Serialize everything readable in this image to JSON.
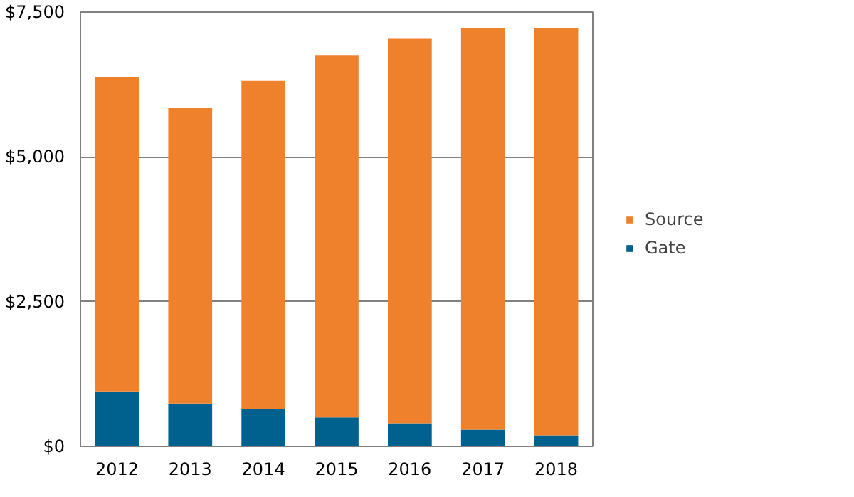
{
  "chart_data": {
    "type": "bar",
    "stacked": true,
    "categories": [
      "2012",
      "2013",
      "2014",
      "2015",
      "2016",
      "2017",
      "2018"
    ],
    "series": [
      {
        "name": "Gate",
        "color": "#00608e",
        "values": [
          950,
          740,
          650,
          500,
          400,
          290,
          190
        ]
      },
      {
        "name": "Source",
        "color": "#f0812c",
        "values": [
          5430,
          5110,
          5660,
          6260,
          6640,
          6930,
          7030
        ]
      }
    ],
    "ylim": [
      0,
      7500
    ],
    "yticks": [
      {
        "value": 0,
        "label": "$0"
      },
      {
        "value": 2500,
        "label": "$2,500"
      },
      {
        "value": 5000,
        "label": "$5,000"
      },
      {
        "value": 7500,
        "label": "$7,500"
      }
    ],
    "grid": "y",
    "legend": "right"
  }
}
